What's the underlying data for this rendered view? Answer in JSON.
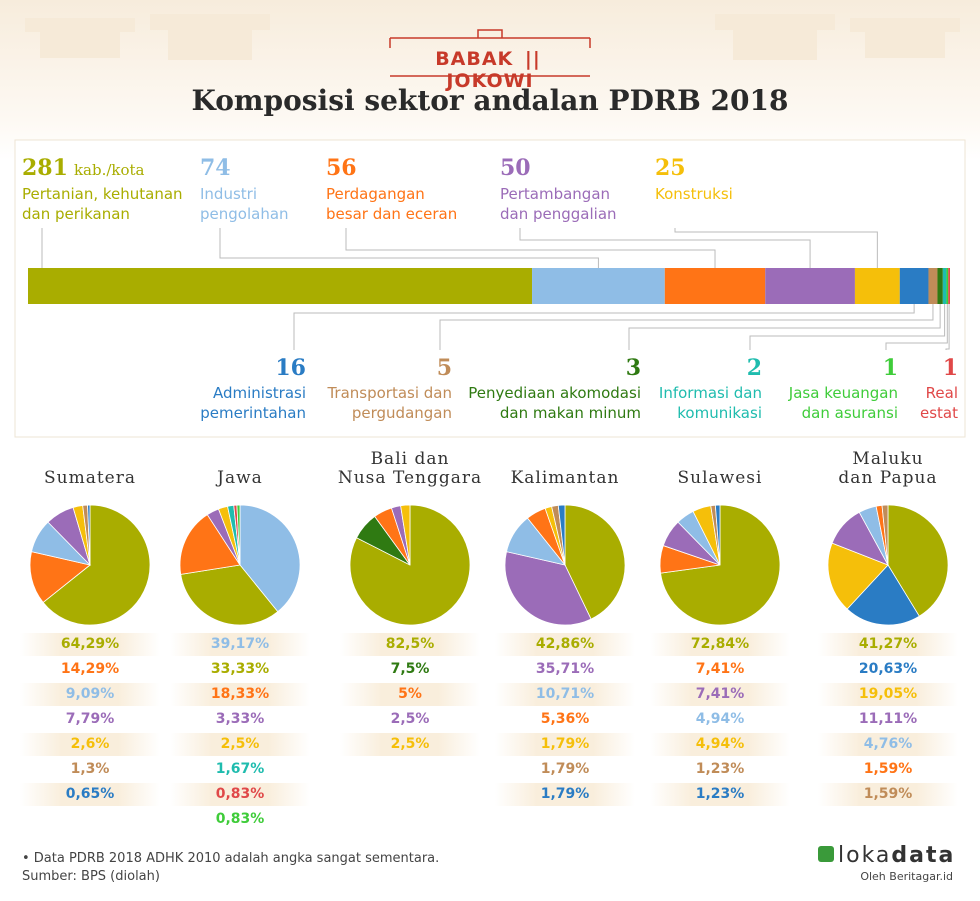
{
  "header": {
    "brand_left": "BABAK",
    "brand_right": "JOKOWI",
    "title": "Komposisi sektor andalan PDRB 2018"
  },
  "chart_data": [
    {
      "type": "stacked-bar",
      "unit": "kab./kota",
      "series": [
        {
          "name": "Pertanian, kehutanan\ndan perikanan",
          "color": "#a9ad00",
          "values": [
            281
          ]
        },
        {
          "name": "Industri\npengolahan",
          "color": "#8fbde6",
          "values": [
            74
          ]
        },
        {
          "name": "Perdagangan\nbesar dan eceran",
          "color": "#ff7416",
          "values": [
            56
          ]
        },
        {
          "name": "Pertambangan\ndan penggalian",
          "color": "#9b6cb8",
          "values": [
            50
          ]
        },
        {
          "name": "Konstruksi",
          "color": "#f5bf0a",
          "values": [
            25
          ]
        },
        {
          "name": "Administrasi\npemerintahan",
          "color": "#2a7cc4",
          "values": [
            16
          ]
        },
        {
          "name": "Transportasi dan\npergudangan",
          "color": "#c08c58",
          "values": [
            5
          ]
        },
        {
          "name": "Penyediaan akomodasi\ndan makan minum",
          "color": "#2f7a12",
          "values": [
            3
          ]
        },
        {
          "name": "Informasi dan\nkomunikasi",
          "color": "#1fbcae",
          "values": [
            2
          ]
        },
        {
          "name": "Jasa keuangan\ndan asuransi",
          "color": "#3fcc3a",
          "values": [
            1
          ]
        },
        {
          "name": "Real\nestat",
          "color": "#e04848",
          "values": [
            1
          ]
        }
      ]
    },
    {
      "type": "pie",
      "title": "Sumatera",
      "values": [
        64.29,
        14.29,
        9.09,
        7.79,
        2.6,
        1.3,
        0.65
      ],
      "value_labels": [
        "64,29%",
        "14,29%",
        "9,09%",
        "7,79%",
        "2,6%",
        "1,3%",
        "0,65%"
      ],
      "colors": [
        "#a9ad00",
        "#ff7416",
        "#8fbde6",
        "#9b6cb8",
        "#f5bf0a",
        "#c08c58",
        "#2a7cc4"
      ]
    },
    {
      "type": "pie",
      "title": "Jawa",
      "values": [
        39.17,
        33.33,
        18.33,
        3.33,
        2.5,
        1.67,
        0.83,
        0.83
      ],
      "value_labels": [
        "39,17%",
        "33,33%",
        "18,33%",
        "3,33%",
        "2,5%",
        "1,67%",
        "0,83%",
        "0,83%"
      ],
      "colors": [
        "#8fbde6",
        "#a9ad00",
        "#ff7416",
        "#9b6cb8",
        "#f5bf0a",
        "#1fbcae",
        "#e04848",
        "#3fcc3a"
      ]
    },
    {
      "type": "pie",
      "title": "Bali dan\nNusa Tenggara",
      "values": [
        82.5,
        7.5,
        5,
        2.5,
        2.5
      ],
      "value_labels": [
        "82,5%",
        "7,5%",
        "5%",
        "2,5%",
        "2,5%"
      ],
      "colors": [
        "#a9ad00",
        "#2f7a12",
        "#ff7416",
        "#9b6cb8",
        "#f5bf0a"
      ]
    },
    {
      "type": "pie",
      "title": "Kalimantan",
      "values": [
        42.86,
        35.71,
        10.71,
        5.36,
        1.79,
        1.79,
        1.79
      ],
      "value_labels": [
        "42,86%",
        "35,71%",
        "10,71%",
        "5,36%",
        "1,79%",
        "1,79%",
        "1,79%"
      ],
      "colors": [
        "#a9ad00",
        "#9b6cb8",
        "#8fbde6",
        "#ff7416",
        "#f5bf0a",
        "#c08c58",
        "#2a7cc4"
      ]
    },
    {
      "type": "pie",
      "title": "Sulawesi",
      "values": [
        72.84,
        7.41,
        7.41,
        4.94,
        4.94,
        1.23,
        1.23
      ],
      "value_labels": [
        "72,84%",
        "7,41%",
        "7,41%",
        "4,94%",
        "4,94%",
        "1,23%",
        "1,23%"
      ],
      "colors": [
        "#a9ad00",
        "#ff7416",
        "#9b6cb8",
        "#8fbde6",
        "#f5bf0a",
        "#c08c58",
        "#2a7cc4"
      ]
    },
    {
      "type": "pie",
      "title": "Maluku\ndan Papua",
      "values": [
        41.27,
        20.63,
        19.05,
        11.11,
        4.76,
        1.59,
        1.59
      ],
      "value_labels": [
        "41,27%",
        "20,63%",
        "19,05%",
        "11,11%",
        "4,76%",
        "1,59%",
        "1,59%"
      ],
      "colors": [
        "#a9ad00",
        "#2a7cc4",
        "#f5bf0a",
        "#9b6cb8",
        "#8fbde6",
        "#ff7416",
        "#c08c58"
      ]
    }
  ],
  "footer": {
    "note": "• Data PDRB 2018 ADHK 2010 adalah angka sangat sementara.",
    "source": "Sumber: BPS (diolah)",
    "logo_a": "loka",
    "logo_b": "data",
    "logo_sub": "Oleh Beritagar.id"
  }
}
